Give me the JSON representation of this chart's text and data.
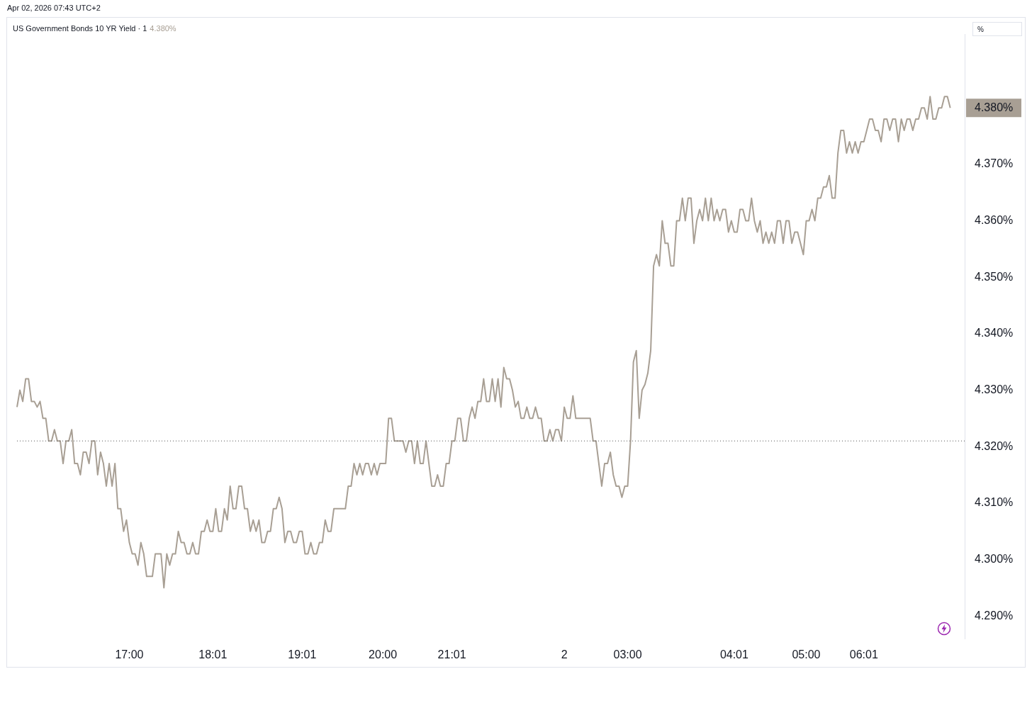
{
  "chart_data": {
    "type": "line",
    "title": "US Government Bonds 10 YR Yield · 1",
    "subtitle": "Apr 02, 2026 07:43 UTC+2",
    "annotations": [
      "4.380%",
      "%"
    ],
    "categories": [
      null,
      null,
      null,
      null,
      null,
      null,
      null,
      null,
      null,
      null,
      null,
      null,
      null,
      null,
      null,
      null,
      null,
      null,
      null,
      null,
      null,
      null,
      null,
      null,
      null,
      null,
      null,
      null,
      null,
      null,
      null,
      null,
      null,
      null,
      null,
      null,
      null,
      null,
      null,
      "17:00",
      null,
      null,
      null,
      null,
      null,
      null,
      null,
      null,
      null,
      null,
      null,
      null,
      null,
      null,
      null,
      null,
      null,
      null,
      null,
      null,
      null,
      null,
      null,
      null,
      null,
      null,
      null,
      null,
      "18:01",
      null,
      null,
      null,
      null,
      null,
      null,
      null,
      null,
      null,
      null,
      null,
      null,
      null,
      null,
      null,
      null,
      null,
      null,
      null,
      null,
      null,
      null,
      null,
      null,
      null,
      null,
      null,
      null,
      null,
      null,
      "19:01",
      null,
      null,
      null,
      null,
      null,
      null,
      null,
      null,
      null,
      null,
      null,
      null,
      null,
      null,
      null,
      null,
      null,
      null,
      null,
      null,
      null,
      null,
      null,
      null,
      null,
      null,
      null,
      "20:00",
      null,
      null,
      null,
      null,
      null,
      null,
      null,
      null,
      null,
      null,
      null,
      null,
      null,
      null,
      null,
      null,
      null,
      null,
      null,
      null,
      null,
      null,
      null,
      "21:01",
      null,
      null,
      null,
      null,
      null,
      null,
      null,
      null,
      null,
      null,
      null,
      null,
      null,
      null,
      null,
      null,
      null,
      null,
      null,
      null,
      null,
      null,
      null,
      null,
      null,
      null,
      null,
      null,
      null,
      null,
      null,
      null,
      null,
      null,
      null,
      null,
      null,
      null,
      "2",
      null,
      null,
      null,
      null,
      null,
      null,
      null,
      null,
      null,
      null,
      null,
      null,
      null,
      null,
      null,
      null,
      null,
      null,
      null,
      null,
      null,
      "03:00",
      null,
      null,
      null,
      null,
      null,
      null,
      null,
      null,
      null,
      null,
      null,
      null,
      null,
      null,
      null,
      null,
      null,
      null,
      null,
      null,
      null,
      null,
      null,
      null,
      null,
      null,
      null,
      null,
      null,
      null,
      null,
      null,
      null,
      null,
      null,
      null,
      "04:01",
      null,
      null,
      null,
      null,
      null,
      null,
      null,
      null,
      null,
      null,
      null,
      null,
      null,
      null,
      null,
      null,
      null,
      null,
      null,
      null,
      null,
      null,
      null,
      null,
      "05:00",
      null,
      null,
      null,
      null,
      null,
      null,
      null,
      null,
      null,
      null,
      null,
      null,
      null,
      null,
      null,
      null,
      null,
      null,
      null,
      "06:01",
      null,
      null,
      null,
      null,
      null,
      null,
      null,
      null,
      null,
      null,
      null,
      null,
      null,
      null,
      null,
      null,
      null,
      null,
      null,
      null,
      null,
      null,
      null,
      null,
      null,
      null,
      null,
      null,
      null,
      null,
      null,
      null,
      null,
      null,
      null
    ],
    "series": [
      {
        "color": "#a89f94",
        "values": [
          4.327,
          4.33,
          4.328,
          4.332,
          4.332,
          4.328,
          4.328,
          4.327,
          4.328,
          4.325,
          4.325,
          4.321,
          4.321,
          4.323,
          4.321,
          4.321,
          4.317,
          4.321,
          4.321,
          4.323,
          4.317,
          4.317,
          4.315,
          4.319,
          4.319,
          4.317,
          4.321,
          4.321,
          4.315,
          4.319,
          4.317,
          4.313,
          4.317,
          4.313,
          4.317,
          4.309,
          4.309,
          4.305,
          4.307,
          4.303,
          4.301,
          4.301,
          4.299,
          4.303,
          4.301,
          4.297,
          4.297,
          4.297,
          4.301,
          4.301,
          4.301,
          4.295,
          4.301,
          4.299,
          4.301,
          4.301,
          4.305,
          4.303,
          4.303,
          4.301,
          4.301,
          4.303,
          4.301,
          4.301,
          4.305,
          4.305,
          4.307,
          4.305,
          4.305,
          4.309,
          4.305,
          4.305,
          4.309,
          4.307,
          4.313,
          4.309,
          4.309,
          4.313,
          4.313,
          4.309,
          4.309,
          4.305,
          4.307,
          4.305,
          4.307,
          4.303,
          4.303,
          4.305,
          4.305,
          4.309,
          4.309,
          4.311,
          4.309,
          4.303,
          4.305,
          4.305,
          4.303,
          4.303,
          4.305,
          4.305,
          4.301,
          4.301,
          4.303,
          4.301,
          4.301,
          4.303,
          4.303,
          4.307,
          4.305,
          4.305,
          4.309,
          4.309,
          4.309,
          4.309,
          4.309,
          4.313,
          4.313,
          4.317,
          4.315,
          4.317,
          4.315,
          4.317,
          4.317,
          4.315,
          4.317,
          4.315,
          4.317,
          4.317,
          4.317,
          4.325,
          4.325,
          4.321,
          4.321,
          4.321,
          4.321,
          4.319,
          4.321,
          4.321,
          4.317,
          4.321,
          4.317,
          4.317,
          4.321,
          4.317,
          4.313,
          4.313,
          4.315,
          4.313,
          4.313,
          4.317,
          4.317,
          4.321,
          4.321,
          4.325,
          4.325,
          4.321,
          4.321,
          4.325,
          4.327,
          4.325,
          4.328,
          4.328,
          4.332,
          4.328,
          4.328,
          4.332,
          4.328,
          4.332,
          4.327,
          4.334,
          4.332,
          4.332,
          4.33,
          4.327,
          4.328,
          4.325,
          4.325,
          4.327,
          4.325,
          4.325,
          4.327,
          4.325,
          4.325,
          4.321,
          4.321,
          4.323,
          4.321,
          4.323,
          4.323,
          4.321,
          4.327,
          4.325,
          4.325,
          4.329,
          4.325,
          4.325,
          4.325,
          4.325,
          4.325,
          4.325,
          4.321,
          4.321,
          4.317,
          4.313,
          4.317,
          4.317,
          4.319,
          4.315,
          4.313,
          4.313,
          4.311,
          4.313,
          4.313,
          4.321,
          4.335,
          4.337,
          4.325,
          4.33,
          4.331,
          4.333,
          4.337,
          4.352,
          4.354,
          4.352,
          4.36,
          4.356,
          4.356,
          4.352,
          4.352,
          4.36,
          4.36,
          4.364,
          4.36,
          4.364,
          4.364,
          4.356,
          4.36,
          4.362,
          4.36,
          4.364,
          4.36,
          4.364,
          4.36,
          4.362,
          4.36,
          4.362,
          4.362,
          4.358,
          4.36,
          4.358,
          4.358,
          4.362,
          4.362,
          4.36,
          4.36,
          4.364,
          4.36,
          4.358,
          4.36,
          4.356,
          4.358,
          4.356,
          4.358,
          4.356,
          4.36,
          4.36,
          4.356,
          4.36,
          4.36,
          4.356,
          4.358,
          4.358,
          4.356,
          4.354,
          4.36,
          4.36,
          4.362,
          4.36,
          4.364,
          4.364,
          4.366,
          4.366,
          4.368,
          4.364,
          4.364,
          4.372,
          4.376,
          4.376,
          4.372,
          4.374,
          4.372,
          4.374,
          4.372,
          4.374,
          4.374,
          4.376,
          4.378,
          4.378,
          4.376,
          4.376,
          4.374,
          4.378,
          4.378,
          4.376,
          4.378,
          4.378,
          4.374,
          4.378,
          4.376,
          4.378,
          4.378,
          4.376,
          4.378,
          4.378,
          4.38,
          4.38,
          4.378,
          4.382,
          4.378,
          4.378,
          4.38,
          4.38,
          4.382,
          4.382,
          4.38,
          null,
          null,
          null,
          null,
          null
        ]
      }
    ],
    "ylim": [
      4.286,
      4.393
    ],
    "yticks": [
      {
        "value": 4.29,
        "label": "4.290%"
      },
      {
        "value": 4.3,
        "label": "4.300%"
      },
      {
        "value": 4.31,
        "label": "4.310%"
      },
      {
        "value": 4.32,
        "label": "4.320%"
      },
      {
        "value": 4.33,
        "label": "4.330%"
      },
      {
        "value": 4.34,
        "label": "4.340%"
      },
      {
        "value": 4.35,
        "label": "4.350%"
      },
      {
        "value": 4.36,
        "label": "4.360%"
      },
      {
        "value": 4.37,
        "label": "4.370%"
      },
      {
        "value": 4.38,
        "label": "4.380%"
      }
    ],
    "ref_lines": [
      {
        "axis": "y",
        "value": 4.321,
        "color": "#555555",
        "line_style": "dotted"
      }
    ],
    "grid": false,
    "legend": false,
    "marker": "none",
    "line_style": "solid"
  }
}
